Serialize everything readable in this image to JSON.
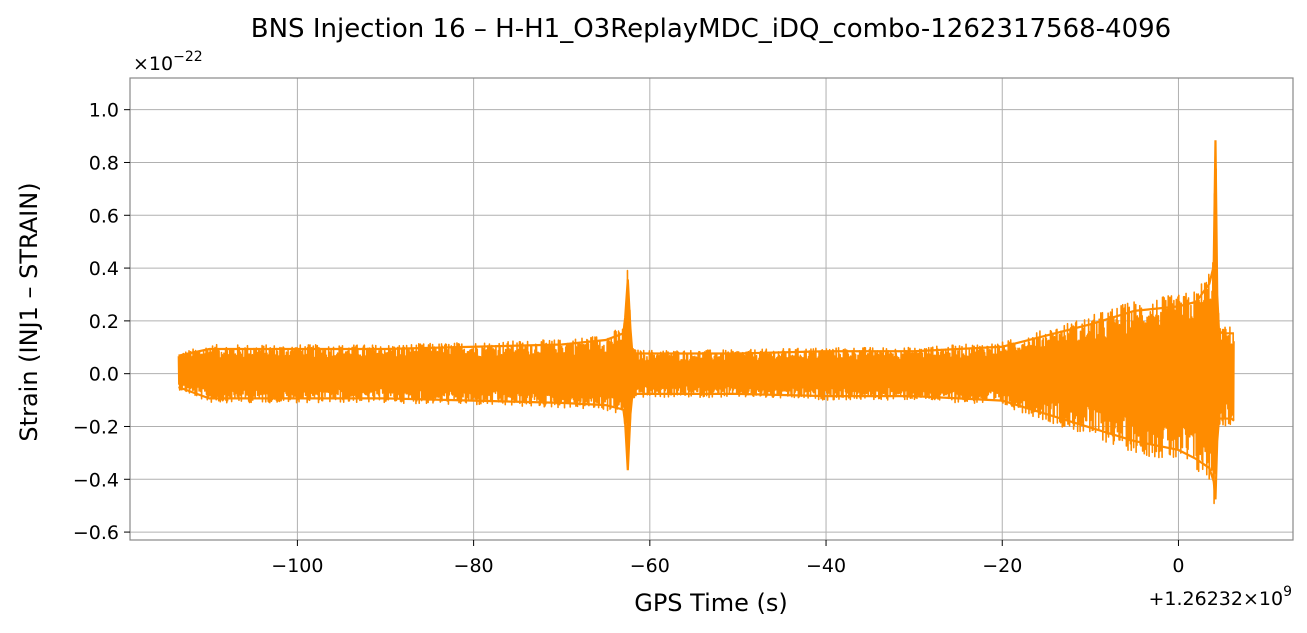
{
  "chart_data": {
    "type": "line",
    "title": "BNS Injection 16 – H-H1_O3ReplayMDC_iDQ_combo-1262317568-4096",
    "xlabel": "GPS Time (s)",
    "ylabel": "Strain (INJ1 – STRAIN)",
    "y_scale_label": "×10",
    "y_scale_exponent": "−22",
    "x_offset_label": "+1.26232×10",
    "x_offset_exponent": "9",
    "xlim": [
      -119,
      13
    ],
    "ylim": [
      -0.63,
      1.12
    ],
    "grid": true,
    "x_ticks": [
      {
        "value": -100,
        "label": "−100"
      },
      {
        "value": -80,
        "label": "−80"
      },
      {
        "value": -60,
        "label": "−60"
      },
      {
        "value": -40,
        "label": "−40"
      },
      {
        "value": -20,
        "label": "−20"
      },
      {
        "value": 0,
        "label": "0"
      }
    ],
    "y_ticks": [
      {
        "value": 1.0,
        "label": "1.0"
      },
      {
        "value": 0.8,
        "label": "0.8"
      },
      {
        "value": 0.6,
        "label": "0.6"
      },
      {
        "value": 0.4,
        "label": "0.4"
      },
      {
        "value": 0.2,
        "label": "0.2"
      },
      {
        "value": 0.0,
        "label": "0.0"
      },
      {
        "value": -0.2,
        "label": "−0.2"
      },
      {
        "value": -0.4,
        "label": "−0.4"
      },
      {
        "value": -0.6,
        "label": "−0.6"
      }
    ],
    "series": [
      {
        "color": "#ff8c00",
        "envelope": {
          "x": [
            -113.5,
            -110,
            -100,
            -90,
            -80,
            -70,
            -65,
            -63,
            -62.8,
            -62.5,
            -62.2,
            -62,
            -61.5,
            -60,
            -50,
            -40,
            -30,
            -20,
            -15,
            -10,
            -5,
            0,
            2,
            3.5,
            4.0,
            4.2,
            4.4,
            4.6,
            5.0,
            6.0,
            6.3
          ],
          "upper": [
            0.08,
            0.11,
            0.11,
            0.11,
            0.12,
            0.13,
            0.15,
            0.18,
            0.25,
            0.42,
            0.2,
            0.1,
            0.09,
            0.09,
            0.09,
            0.1,
            0.1,
            0.12,
            0.17,
            0.22,
            0.28,
            0.3,
            0.32,
            0.4,
            0.48,
            1.04,
            0.35,
            0.19,
            0.18,
            0.18,
            0.18
          ],
          "lower": [
            -0.06,
            -0.11,
            -0.11,
            -0.11,
            -0.12,
            -0.13,
            -0.14,
            -0.16,
            -0.22,
            -0.43,
            -0.18,
            -0.1,
            -0.09,
            -0.09,
            -0.09,
            -0.1,
            -0.1,
            -0.12,
            -0.18,
            -0.24,
            -0.3,
            -0.34,
            -0.38,
            -0.42,
            -0.48,
            -0.56,
            -0.3,
            -0.2,
            -0.2,
            -0.2,
            -0.21
          ]
        }
      }
    ]
  }
}
